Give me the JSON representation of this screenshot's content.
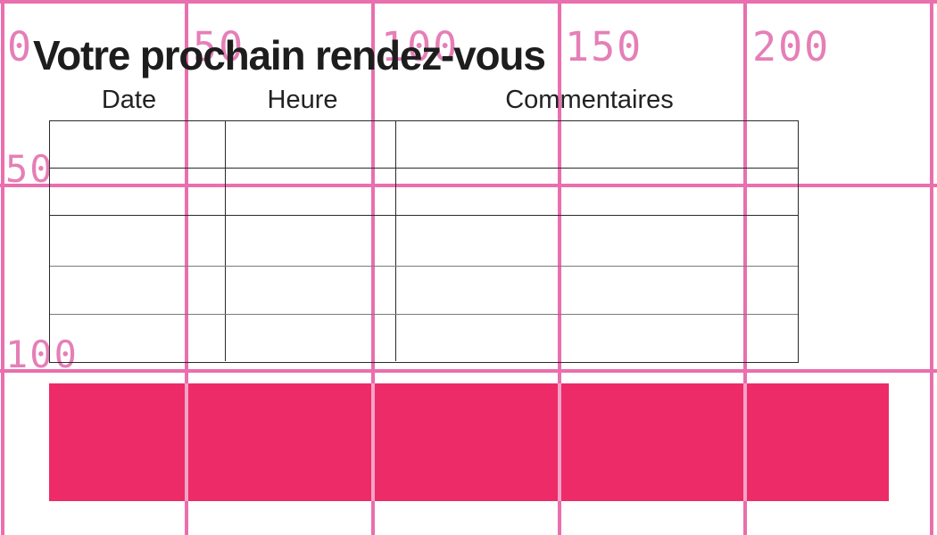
{
  "document": {
    "title": "Votre prochain rendez-vous"
  },
  "table": {
    "headers": [
      "Date",
      "Heure",
      "Commentaires"
    ],
    "rows": [
      [
        "",
        "",
        ""
      ],
      [
        "",
        "",
        ""
      ],
      [
        "",
        "",
        ""
      ],
      [
        "",
        "",
        ""
      ],
      [
        "",
        "",
        ""
      ]
    ]
  },
  "ruler": {
    "top_ticks": [
      "0",
      "50",
      "100",
      "150",
      "200"
    ],
    "left_ticks": [
      "50",
      "100"
    ]
  },
  "colors": {
    "grid_line": "#e96fae",
    "grid_label": "#e57fb7",
    "grid_line_over_highlight": "#f2a3c7",
    "highlight_bar": "#ed2b68",
    "table_border_dark": "#2a2a2a",
    "table_border_light": "#7a7a7a",
    "text": "#1d1d1d"
  }
}
